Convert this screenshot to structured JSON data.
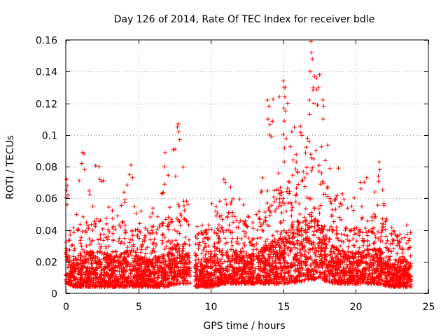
{
  "chart_data": {
    "type": "scatter",
    "title": "Day 126 of 2014, Rate Of TEC Index for receiver bdle",
    "xlabel": "GPS time / hours",
    "ylabel": "ROTI / TECUs",
    "xlim": [
      0,
      25
    ],
    "ylim": [
      0,
      0.16
    ],
    "grid": true,
    "x_ticks": [
      0,
      5,
      10,
      15,
      20,
      25
    ],
    "y_ticks": [
      0,
      0.02,
      0.04,
      0.06,
      0.08,
      0.1,
      0.12,
      0.14,
      0.16
    ],
    "x_tick_labels": [
      "0",
      "5",
      "10",
      "15",
      "20",
      "25"
    ],
    "y_tick_labels": [
      "0",
      "0.02",
      "0.04",
      "0.06",
      "0.08",
      "0.1",
      "0.12",
      "0.14",
      "0.16"
    ],
    "marker": "+",
    "color": "#ff0000",
    "series": [
      {
        "name": "ROTI",
        "segments": [
          {
            "start": 0.0,
            "end": 8.6
          },
          {
            "start": 8.9,
            "end": 13.0
          },
          {
            "start": 13.1,
            "end": 23.8
          }
        ],
        "envelope": [
          {
            "t": 0.0,
            "base": 0.012,
            "upper": 0.045,
            "peak": 0.072
          },
          {
            "t": 0.5,
            "base": 0.01,
            "upper": 0.035,
            "peak": 0.045
          },
          {
            "t": 1.2,
            "base": 0.01,
            "upper": 0.045,
            "peak": 0.089
          },
          {
            "t": 2.3,
            "base": 0.01,
            "upper": 0.045,
            "peak": 0.08
          },
          {
            "t": 3.5,
            "base": 0.01,
            "upper": 0.04,
            "peak": 0.05
          },
          {
            "t": 4.5,
            "base": 0.01,
            "upper": 0.048,
            "peak": 0.081
          },
          {
            "t": 5.5,
            "base": 0.01,
            "upper": 0.035,
            "peak": 0.045
          },
          {
            "t": 6.8,
            "base": 0.01,
            "upper": 0.045,
            "peak": 0.089
          },
          {
            "t": 7.8,
            "base": 0.012,
            "upper": 0.055,
            "peak": 0.107
          },
          {
            "t": 8.6,
            "base": 0.012,
            "upper": 0.04,
            "peak": 0.05
          },
          {
            "t": 9.0,
            "base": 0.01,
            "upper": 0.035,
            "peak": 0.045
          },
          {
            "t": 10.0,
            "base": 0.01,
            "upper": 0.04,
            "peak": 0.06
          },
          {
            "t": 11.0,
            "base": 0.012,
            "upper": 0.045,
            "peak": 0.072
          },
          {
            "t": 12.0,
            "base": 0.012,
            "upper": 0.045,
            "peak": 0.06
          },
          {
            "t": 13.0,
            "base": 0.012,
            "upper": 0.04,
            "peak": 0.05
          },
          {
            "t": 13.5,
            "base": 0.012,
            "upper": 0.05,
            "peak": 0.065
          },
          {
            "t": 14.0,
            "base": 0.012,
            "upper": 0.055,
            "peak": 0.122
          },
          {
            "t": 15.0,
            "base": 0.012,
            "upper": 0.065,
            "peak": 0.134
          },
          {
            "t": 16.0,
            "base": 0.013,
            "upper": 0.08,
            "peak": 0.108
          },
          {
            "t": 17.0,
            "base": 0.015,
            "upper": 0.09,
            "peak": 0.159
          },
          {
            "t": 17.5,
            "base": 0.015,
            "upper": 0.08,
            "peak": 0.138
          },
          {
            "t": 18.5,
            "base": 0.012,
            "upper": 0.05,
            "peak": 0.079
          },
          {
            "t": 19.5,
            "base": 0.012,
            "upper": 0.045,
            "peak": 0.055
          },
          {
            "t": 20.5,
            "base": 0.012,
            "upper": 0.045,
            "peak": 0.07
          },
          {
            "t": 21.5,
            "base": 0.012,
            "upper": 0.05,
            "peak": 0.083
          },
          {
            "t": 22.5,
            "base": 0.01,
            "upper": 0.035,
            "peak": 0.045
          },
          {
            "t": 23.5,
            "base": 0.01,
            "upper": 0.035,
            "peak": 0.043
          }
        ],
        "highlights": [
          {
            "x": 0.05,
            "y": 0.072
          },
          {
            "x": 0.1,
            "y": 0.068
          },
          {
            "x": 0.15,
            "y": 0.062
          },
          {
            "x": 1.15,
            "y": 0.089
          },
          {
            "x": 1.25,
            "y": 0.088
          },
          {
            "x": 1.1,
            "y": 0.082
          },
          {
            "x": 1.3,
            "y": 0.078
          },
          {
            "x": 2.3,
            "y": 0.08
          },
          {
            "x": 2.35,
            "y": 0.072
          },
          {
            "x": 4.4,
            "y": 0.075
          },
          {
            "x": 4.5,
            "y": 0.081
          },
          {
            "x": 4.6,
            "y": 0.073
          },
          {
            "x": 6.8,
            "y": 0.08
          },
          {
            "x": 6.85,
            "y": 0.089
          },
          {
            "x": 7.7,
            "y": 0.105
          },
          {
            "x": 7.75,
            "y": 0.107
          },
          {
            "x": 7.8,
            "y": 0.102
          },
          {
            "x": 7.85,
            "y": 0.097
          },
          {
            "x": 10.9,
            "y": 0.072
          },
          {
            "x": 11.0,
            "y": 0.07
          },
          {
            "x": 13.9,
            "y": 0.122
          },
          {
            "x": 14.0,
            "y": 0.118
          },
          {
            "x": 13.95,
            "y": 0.11
          },
          {
            "x": 14.05,
            "y": 0.1
          },
          {
            "x": 15.0,
            "y": 0.134
          },
          {
            "x": 15.05,
            "y": 0.13
          },
          {
            "x": 15.1,
            "y": 0.124
          },
          {
            "x": 15.15,
            "y": 0.115
          },
          {
            "x": 15.3,
            "y": 0.12
          },
          {
            "x": 16.9,
            "y": 0.159
          },
          {
            "x": 16.95,
            "y": 0.152
          },
          {
            "x": 17.0,
            "y": 0.148
          },
          {
            "x": 16.85,
            "y": 0.14
          },
          {
            "x": 17.05,
            "y": 0.13
          },
          {
            "x": 16.8,
            "y": 0.122
          },
          {
            "x": 17.1,
            "y": 0.12
          },
          {
            "x": 17.3,
            "y": 0.136
          },
          {
            "x": 17.5,
            "y": 0.138
          },
          {
            "x": 17.45,
            "y": 0.13
          },
          {
            "x": 18.8,
            "y": 0.079
          },
          {
            "x": 20.3,
            "y": 0.07
          },
          {
            "x": 20.35,
            "y": 0.066
          },
          {
            "x": 21.6,
            "y": 0.083
          },
          {
            "x": 21.65,
            "y": 0.078
          },
          {
            "x": 21.55,
            "y": 0.074
          },
          {
            "x": 23.5,
            "y": 0.043
          }
        ]
      }
    ]
  }
}
